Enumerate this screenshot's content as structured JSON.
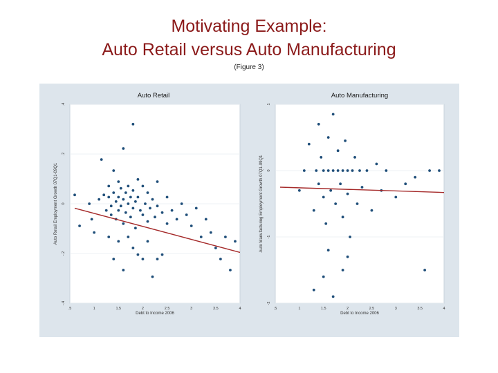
{
  "page": {
    "title_line1": "Motivating Example:",
    "title_line2": "Auto Retail versus Auto Manufacturing",
    "subtitle": "(Figure 3)"
  },
  "colors": {
    "title": "#8b1a1a",
    "points": "#1f4e79",
    "fit_line": "#a52a2a",
    "figure_bg": "#dde5ec"
  },
  "chart_data": [
    {
      "type": "scatter",
      "title": "Auto Retail",
      "xlabel": "Debt to Income 2006",
      "ylabel": "Auto Retail Employment Growth 07Q1-09Q1",
      "xlim": [
        0.5,
        4
      ],
      "ylim": [
        -0.5,
        0.4
      ],
      "xticks": [
        ".5",
        "1",
        "1.5",
        "2",
        "2.5",
        "3",
        "3.5",
        "4"
      ],
      "yticks": [
        "-.4",
        "-.2",
        "0",
        ".2",
        ".4"
      ],
      "grid": true,
      "fit_line": {
        "x": [
          0.6,
          4.0
        ],
        "y": [
          -0.07,
          -0.27
        ]
      },
      "points": [
        [
          0.6,
          -0.01
        ],
        [
          0.7,
          -0.15
        ],
        [
          0.9,
          -0.05
        ],
        [
          0.95,
          -0.12
        ],
        [
          1.0,
          -0.18
        ],
        [
          1.1,
          -0.03
        ],
        [
          1.15,
          0.15
        ],
        [
          1.2,
          -0.01
        ],
        [
          1.25,
          -0.08
        ],
        [
          1.3,
          0.03
        ],
        [
          1.3,
          -0.02
        ],
        [
          1.35,
          -0.06
        ],
        [
          1.35,
          -0.1
        ],
        [
          1.4,
          0.1
        ],
        [
          1.4,
          0.0
        ],
        [
          1.45,
          -0.04
        ],
        [
          1.45,
          -0.12
        ],
        [
          1.5,
          0.05
        ],
        [
          1.5,
          -0.02
        ],
        [
          1.5,
          -0.08
        ],
        [
          1.55,
          0.02
        ],
        [
          1.55,
          -0.06
        ],
        [
          1.6,
          0.2
        ],
        [
          1.6,
          -0.03
        ],
        [
          1.6,
          -0.14
        ],
        [
          1.65,
          0.0
        ],
        [
          1.65,
          -0.09
        ],
        [
          1.7,
          0.03
        ],
        [
          1.7,
          -0.05
        ],
        [
          1.75,
          -0.02
        ],
        [
          1.75,
          -0.11
        ],
        [
          1.8,
          0.31
        ],
        [
          1.8,
          0.01
        ],
        [
          1.8,
          -0.07
        ],
        [
          1.85,
          -0.04
        ],
        [
          1.85,
          -0.16
        ],
        [
          1.9,
          0.06
        ],
        [
          1.9,
          -0.02
        ],
        [
          1.95,
          -0.08
        ],
        [
          2.0,
          0.03
        ],
        [
          2.0,
          -0.1
        ],
        [
          2.05,
          -0.05
        ],
        [
          2.1,
          0.0
        ],
        [
          2.1,
          -0.13
        ],
        [
          2.15,
          -0.07
        ],
        [
          2.2,
          -0.03
        ],
        [
          2.25,
          -0.11
        ],
        [
          2.3,
          0.05
        ],
        [
          2.3,
          -0.06
        ],
        [
          2.4,
          -0.09
        ],
        [
          2.5,
          -0.02
        ],
        [
          2.5,
          -0.14
        ],
        [
          2.6,
          -0.08
        ],
        [
          2.7,
          -0.12
        ],
        [
          2.8,
          -0.05
        ],
        [
          2.9,
          -0.1
        ],
        [
          3.0,
          -0.15
        ],
        [
          3.1,
          -0.07
        ],
        [
          3.2,
          -0.2
        ],
        [
          3.3,
          -0.12
        ],
        [
          3.4,
          -0.18
        ],
        [
          3.5,
          -0.25
        ],
        [
          3.6,
          -0.3
        ],
        [
          3.7,
          -0.2
        ],
        [
          3.8,
          -0.35
        ],
        [
          3.9,
          -0.22
        ],
        [
          1.4,
          -0.3
        ],
        [
          1.6,
          -0.35
        ],
        [
          1.8,
          -0.25
        ],
        [
          2.0,
          -0.3
        ],
        [
          2.2,
          -0.38
        ],
        [
          2.4,
          -0.28
        ],
        [
          1.3,
          -0.2
        ],
        [
          1.5,
          -0.22
        ],
        [
          1.7,
          -0.2
        ],
        [
          1.9,
          -0.28
        ],
        [
          2.1,
          -0.22
        ],
        [
          2.3,
          -0.3
        ]
      ]
    },
    {
      "type": "scatter",
      "title": "Auto Manufacturing",
      "xlabel": "Debt to Income 2006",
      "ylabel": "Auto Manufacturing Employment Growth 07Q1-09Q1",
      "xlim": [
        0.5,
        4
      ],
      "ylim": [
        -2,
        1
      ],
      "xticks": [
        ".5",
        "1",
        "1.5",
        "2",
        "2.5",
        "3",
        "3.5",
        "4"
      ],
      "yticks": [
        "-2",
        "-1",
        "0",
        "1"
      ],
      "grid": true,
      "fit_line": {
        "x": [
          0.6,
          4.0
        ],
        "y": [
          -0.25,
          -0.33
        ]
      },
      "points": [
        [
          1.0,
          -0.3
        ],
        [
          1.1,
          0.0
        ],
        [
          1.2,
          0.4
        ],
        [
          1.3,
          -0.6
        ],
        [
          1.35,
          0.0
        ],
        [
          1.4,
          0.7
        ],
        [
          1.4,
          -0.2
        ],
        [
          1.45,
          0.2
        ],
        [
          1.5,
          0.0
        ],
        [
          1.5,
          -0.4
        ],
        [
          1.55,
          -0.8
        ],
        [
          1.6,
          0.5
        ],
        [
          1.6,
          0.0
        ],
        [
          1.65,
          -0.3
        ],
        [
          1.7,
          0.85
        ],
        [
          1.7,
          0.0
        ],
        [
          1.75,
          -0.5
        ],
        [
          1.8,
          0.3
        ],
        [
          1.8,
          0.0
        ],
        [
          1.85,
          -0.2
        ],
        [
          1.9,
          0.0
        ],
        [
          1.9,
          -0.7
        ],
        [
          1.95,
          0.45
        ],
        [
          2.0,
          0.0
        ],
        [
          2.0,
          -0.35
        ],
        [
          2.05,
          -1.0
        ],
        [
          2.1,
          0.0
        ],
        [
          2.15,
          0.2
        ],
        [
          2.2,
          -0.5
        ],
        [
          2.25,
          0.0
        ],
        [
          2.3,
          -0.25
        ],
        [
          2.4,
          0.0
        ],
        [
          2.5,
          -0.6
        ],
        [
          2.6,
          0.1
        ],
        [
          2.7,
          -0.3
        ],
        [
          2.8,
          0.0
        ],
        [
          3.0,
          -0.4
        ],
        [
          3.2,
          -0.2
        ],
        [
          3.4,
          -0.1
        ],
        [
          3.6,
          -1.5
        ],
        [
          3.7,
          0.0
        ],
        [
          3.9,
          0.0
        ],
        [
          1.3,
          -1.8
        ],
        [
          1.5,
          -1.6
        ],
        [
          1.7,
          -1.9
        ],
        [
          2.0,
          -1.3
        ],
        [
          1.6,
          -1.2
        ],
        [
          1.9,
          -1.5
        ]
      ]
    }
  ]
}
